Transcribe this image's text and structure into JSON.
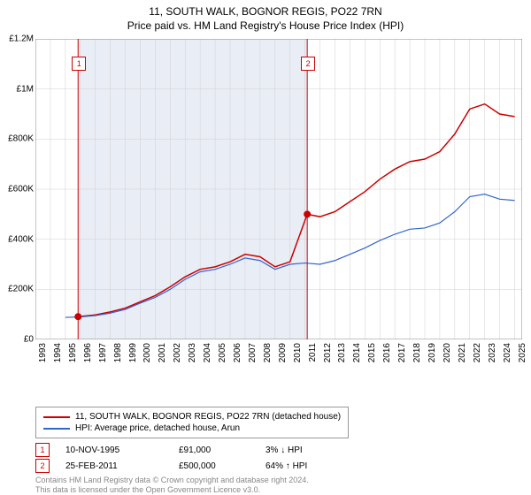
{
  "title": "11, SOUTH WALK, BOGNOR REGIS, PO22 7RN",
  "subtitle": "Price paid vs. HM Land Registry's House Price Index (HPI)",
  "chart": {
    "type": "line",
    "background_color": "#ffffff",
    "shaded_region_color": "#e9edf5",
    "grid_color": "#d0d0d0",
    "xlim": [
      1993,
      2025.5
    ],
    "ylim": [
      0,
      1200000
    ],
    "ytick_step": 200000,
    "yticks": [
      "£0",
      "£200K",
      "£400K",
      "£600K",
      "£800K",
      "£1M",
      "£1.2M"
    ],
    "xtick_step": 1,
    "xticks": [
      1993,
      1994,
      1995,
      1996,
      1997,
      1998,
      1999,
      2000,
      2001,
      2002,
      2003,
      2004,
      2005,
      2006,
      2007,
      2008,
      2009,
      2010,
      2011,
      2012,
      2013,
      2014,
      2015,
      2016,
      2017,
      2018,
      2019,
      2020,
      2021,
      2022,
      2023,
      2024,
      2025
    ],
    "series": [
      {
        "name": "11, SOUTH WALK, BOGNOR REGIS, PO22 7RN (detached house)",
        "color": "#cc0000",
        "line_width": 1.5,
        "data": [
          [
            1995.85,
            91000
          ],
          [
            1996,
            92000
          ],
          [
            1997,
            98000
          ],
          [
            1998,
            110000
          ],
          [
            1999,
            125000
          ],
          [
            2000,
            150000
          ],
          [
            2001,
            175000
          ],
          [
            2002,
            210000
          ],
          [
            2003,
            250000
          ],
          [
            2004,
            280000
          ],
          [
            2005,
            290000
          ],
          [
            2006,
            310000
          ],
          [
            2007,
            340000
          ],
          [
            2008,
            330000
          ],
          [
            2009,
            290000
          ],
          [
            2010,
            310000
          ],
          [
            2011.15,
            500000
          ],
          [
            2012,
            490000
          ],
          [
            2013,
            510000
          ],
          [
            2014,
            550000
          ],
          [
            2015,
            590000
          ],
          [
            2016,
            640000
          ],
          [
            2017,
            680000
          ],
          [
            2018,
            710000
          ],
          [
            2019,
            720000
          ],
          [
            2020,
            750000
          ],
          [
            2021,
            820000
          ],
          [
            2022,
            920000
          ],
          [
            2023,
            940000
          ],
          [
            2024,
            900000
          ],
          [
            2025,
            890000
          ]
        ]
      },
      {
        "name": "HPI: Average price, detached house, Arun",
        "color": "#3366cc",
        "line_width": 1.2,
        "data": [
          [
            1995,
            88000
          ],
          [
            1996,
            90000
          ],
          [
            1997,
            95000
          ],
          [
            1998,
            105000
          ],
          [
            1999,
            120000
          ],
          [
            2000,
            145000
          ],
          [
            2001,
            168000
          ],
          [
            2002,
            200000
          ],
          [
            2003,
            240000
          ],
          [
            2004,
            270000
          ],
          [
            2005,
            280000
          ],
          [
            2006,
            300000
          ],
          [
            2007,
            325000
          ],
          [
            2008,
            315000
          ],
          [
            2009,
            280000
          ],
          [
            2010,
            300000
          ],
          [
            2011,
            305000
          ],
          [
            2012,
            300000
          ],
          [
            2013,
            315000
          ],
          [
            2014,
            340000
          ],
          [
            2015,
            365000
          ],
          [
            2016,
            395000
          ],
          [
            2017,
            420000
          ],
          [
            2018,
            440000
          ],
          [
            2019,
            445000
          ],
          [
            2020,
            465000
          ],
          [
            2021,
            510000
          ],
          [
            2022,
            570000
          ],
          [
            2023,
            580000
          ],
          [
            2024,
            560000
          ],
          [
            2025,
            555000
          ]
        ]
      }
    ],
    "markers": [
      {
        "n": "1",
        "x": 1995.85,
        "y": 91000,
        "color": "#cc0000"
      },
      {
        "n": "2",
        "x": 2011.15,
        "y": 500000,
        "color": "#cc0000"
      }
    ],
    "shaded_region": [
      1995.85,
      2011.15
    ]
  },
  "legend": {
    "items": [
      {
        "color": "#cc0000",
        "label": "11, SOUTH WALK, BOGNOR REGIS, PO22 7RN (detached house)"
      },
      {
        "color": "#3366cc",
        "label": "HPI: Average price, detached house, Arun"
      }
    ]
  },
  "sales": [
    {
      "n": "1",
      "color": "#cc0000",
      "date": "10-NOV-1995",
      "price": "£91,000",
      "diff": "3% ↓ HPI"
    },
    {
      "n": "2",
      "color": "#cc0000",
      "date": "25-FEB-2011",
      "price": "£500,000",
      "diff": "64% ↑ HPI"
    }
  ],
  "footer_line1": "Contains HM Land Registry data © Crown copyright and database right 2024.",
  "footer_line2": "This data is licensed under the Open Government Licence v3.0."
}
